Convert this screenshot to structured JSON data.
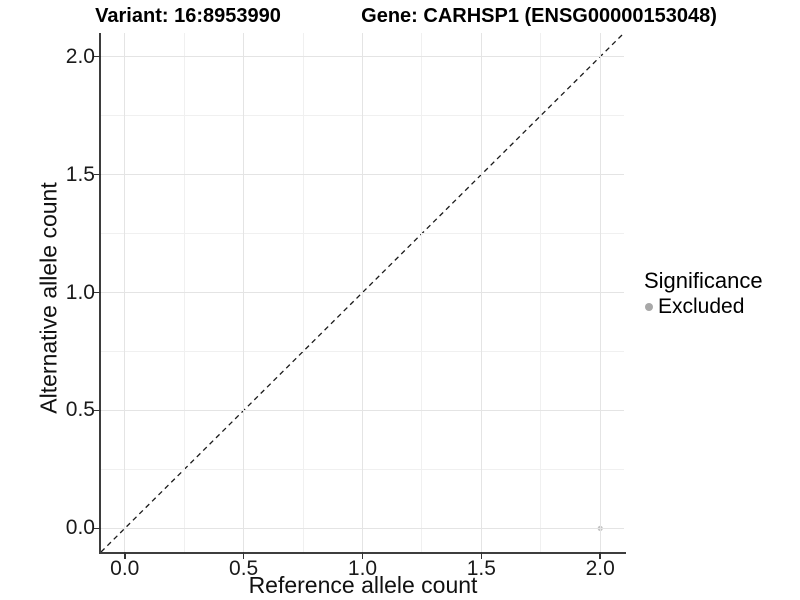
{
  "chart_data": {
    "type": "scatter",
    "titles": {
      "variant": "Variant: 16:8953990",
      "gene": "Gene: CARHSP1 (ENSG00000153048)"
    },
    "xlabel": "Reference allele count",
    "ylabel": "Alternative allele count",
    "xlim": [
      -0.1,
      2.1
    ],
    "ylim": [
      -0.1,
      2.1
    ],
    "x_ticks": [
      0,
      0.5,
      1,
      1.5,
      2
    ],
    "x_tick_labels": [
      "0.0",
      "0.5",
      "1.0",
      "1.5",
      "2.0"
    ],
    "y_ticks": [
      0,
      0.5,
      1,
      1.5,
      2
    ],
    "y_tick_labels": [
      "0.0",
      "0.5",
      "1.0",
      "1.5",
      "2.0"
    ],
    "x_minor_ticks": [
      0.25,
      0.75,
      1.25,
      1.75
    ],
    "y_minor_ticks": [
      0.25,
      0.75,
      1.25,
      1.75
    ],
    "grid": true,
    "identity_line": {
      "style": "dashed",
      "x1": -0.1,
      "y1": -0.1,
      "x2": 2.1,
      "y2": 2.1,
      "color": "#1a1a1a"
    },
    "series": [
      {
        "name": "Excluded",
        "color": "#c2c2c2",
        "point_radius": 2.6,
        "points": [
          [
            2.0,
            0.0
          ]
        ]
      }
    ],
    "legend": {
      "title": "Significance",
      "position": "right",
      "entries": [
        {
          "label": "Excluded",
          "color": "#a8a8a8"
        }
      ]
    },
    "colors": {
      "grid_major": "#e4e4e4",
      "grid_minor": "#f0f0f0",
      "axis_line": "#3d3d3d",
      "tick": "#333333",
      "text": "#1a1a1a"
    }
  }
}
